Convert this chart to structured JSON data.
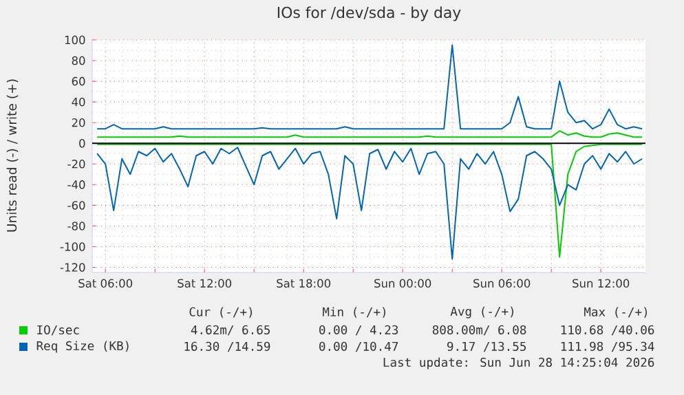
{
  "chart_data": {
    "type": "line",
    "title": "IOs for /dev/sda - by day",
    "ylabel": "Units read (-) / write (+)",
    "x": [
      "2026-06-27T05:30",
      "2026-06-27T06:00",
      "2026-06-27T06:30",
      "2026-06-27T07:00",
      "2026-06-27T07:30",
      "2026-06-27T08:00",
      "2026-06-27T08:30",
      "2026-06-27T09:00",
      "2026-06-27T09:30",
      "2026-06-27T10:00",
      "2026-06-27T10:30",
      "2026-06-27T11:00",
      "2026-06-27T11:30",
      "2026-06-27T12:00",
      "2026-06-27T12:30",
      "2026-06-27T13:00",
      "2026-06-27T13:30",
      "2026-06-27T14:00",
      "2026-06-27T14:30",
      "2026-06-27T15:00",
      "2026-06-27T15:30",
      "2026-06-27T16:00",
      "2026-06-27T16:30",
      "2026-06-27T17:00",
      "2026-06-27T17:30",
      "2026-06-27T18:00",
      "2026-06-27T18:30",
      "2026-06-27T19:00",
      "2026-06-27T19:30",
      "2026-06-27T20:00",
      "2026-06-27T20:30",
      "2026-06-27T21:00",
      "2026-06-27T21:30",
      "2026-06-27T22:00",
      "2026-06-27T22:30",
      "2026-06-27T23:00",
      "2026-06-27T23:30",
      "2026-06-28T00:00",
      "2026-06-28T00:30",
      "2026-06-28T01:00",
      "2026-06-28T01:30",
      "2026-06-28T02:00",
      "2026-06-28T02:30",
      "2026-06-28T03:00",
      "2026-06-28T03:30",
      "2026-06-28T04:00",
      "2026-06-28T04:30",
      "2026-06-28T05:00",
      "2026-06-28T05:30",
      "2026-06-28T06:00",
      "2026-06-28T06:30",
      "2026-06-28T07:00",
      "2026-06-28T07:30",
      "2026-06-28T08:00",
      "2026-06-28T08:30",
      "2026-06-28T09:00",
      "2026-06-28T09:30",
      "2026-06-28T10:00",
      "2026-06-28T10:30",
      "2026-06-28T11:00",
      "2026-06-28T11:30",
      "2026-06-28T12:00",
      "2026-06-28T12:30",
      "2026-06-28T13:00",
      "2026-06-28T13:30",
      "2026-06-28T14:00",
      "2026-06-28T14:30"
    ],
    "series": [
      {
        "name": "IO/sec",
        "color": "#00cc00",
        "values": [
          6,
          6,
          6,
          6,
          6,
          6,
          6,
          6,
          6,
          6,
          7,
          6,
          6,
          6,
          6,
          6,
          6,
          6,
          6,
          6,
          6,
          6,
          6,
          6,
          8,
          6,
          6,
          6,
          6,
          6,
          6,
          6,
          6,
          6,
          6,
          6,
          6,
          6,
          6,
          6,
          7,
          6,
          6,
          6,
          6,
          6,
          6,
          6,
          6,
          6,
          6,
          6,
          6,
          6,
          6,
          6,
          12,
          8,
          10,
          7,
          6,
          6,
          9,
          10,
          8,
          6,
          6
        ]
      },
      {
        "color": "#00cc00",
        "values": [
          -1,
          -1,
          -1,
          -1,
          -1,
          -1,
          -1,
          -1,
          -1,
          -1,
          -1,
          -1,
          -1,
          -1,
          -1,
          -1,
          -1,
          -1,
          -1,
          -1,
          -1,
          -1,
          -1,
          -1,
          -1,
          -1,
          -1,
          -1,
          -1,
          -1,
          -1,
          -1,
          -1,
          -1,
          -1,
          -1,
          -1,
          -1,
          -1,
          -1,
          -1,
          -1,
          -1,
          -1,
          -1,
          -1,
          -1,
          -1,
          -1,
          -1,
          -1,
          -1,
          -1,
          -1,
          -1,
          -1,
          -110,
          -30,
          -8,
          -3,
          -2,
          -1,
          -1,
          -1,
          -1,
          -1,
          -1
        ]
      },
      {
        "name": "Req Size (KB)",
        "color": "#0066b3",
        "values": [
          14,
          14,
          18,
          14,
          14,
          14,
          14,
          14,
          16,
          14,
          14,
          14,
          14,
          14,
          14,
          14,
          14,
          14,
          14,
          14,
          15,
          14,
          14,
          14,
          14,
          14,
          14,
          14,
          14,
          14,
          16,
          14,
          14,
          14,
          14,
          14,
          14,
          14,
          14,
          14,
          14,
          14,
          14,
          95,
          14,
          14,
          14,
          14,
          14,
          14,
          20,
          45,
          16,
          14,
          14,
          14,
          60,
          30,
          20,
          22,
          14,
          18,
          33,
          18,
          14,
          16,
          14
        ]
      },
      {
        "color": "#0066b3",
        "values": [
          -10,
          -20,
          -65,
          -15,
          -30,
          -8,
          -12,
          -5,
          -18,
          -10,
          -25,
          -42,
          -12,
          -8,
          -20,
          -5,
          -10,
          -4,
          -22,
          -40,
          -12,
          -8,
          -25,
          -15,
          -5,
          -20,
          -10,
          -8,
          -30,
          -73,
          -12,
          -20,
          -65,
          -10,
          -6,
          -25,
          -8,
          -18,
          -5,
          -30,
          -10,
          -8,
          -20,
          -112,
          -15,
          -25,
          -10,
          -20,
          -8,
          -30,
          -66,
          -54,
          -12,
          -8,
          -15,
          -25,
          -60,
          -40,
          -45,
          -20,
          -12,
          -25,
          -10,
          -18,
          -8,
          -20,
          -15
        ]
      }
    ],
    "xlim": [
      "2026-06-27T05:12",
      "2026-06-28T14:42"
    ],
    "xticks": [
      {
        "value": "2026-06-27T06:00",
        "label": "Sat 06:00"
      },
      {
        "value": "2026-06-27T09:00",
        "label": null
      },
      {
        "value": "2026-06-27T12:00",
        "label": "Sat 12:00"
      },
      {
        "value": "2026-06-27T15:00",
        "label": null
      },
      {
        "value": "2026-06-27T18:00",
        "label": "Sat 18:00"
      },
      {
        "value": "2026-06-27T21:00",
        "label": null
      },
      {
        "value": "2026-06-28T00:00",
        "label": "Sun 00:00"
      },
      {
        "value": "2026-06-28T03:00",
        "label": null
      },
      {
        "value": "2026-06-28T06:00",
        "label": "Sun 06:00"
      },
      {
        "value": "2026-06-28T09:00",
        "label": null
      },
      {
        "value": "2026-06-28T12:00",
        "label": "Sun 12:00"
      }
    ],
    "ylim": [
      -125,
      100
    ],
    "yticks": [
      -120,
      -100,
      -80,
      -60,
      -40,
      -20,
      0,
      20,
      40,
      60,
      80,
      100
    ],
    "grid": true,
    "legend": "bottom",
    "ref_lines": [
      {
        "axis": "y",
        "value": 0,
        "color": "#000000"
      }
    ],
    "annotations": [
      "Cur (-/+)",
      "Min (-/+)",
      "Avg (-/+)",
      "Max (-/+)",
      "4.62m/ 6.65",
      "0.00 / 4.23",
      "808.00m/ 6.08",
      "110.68 /40.06",
      "16.30 /14.59",
      "0.00 /10.47",
      "9.17 /13.55",
      "111.98 /95.34",
      "Last update: Sun Jun 28 14:25:04 2026"
    ]
  }
}
